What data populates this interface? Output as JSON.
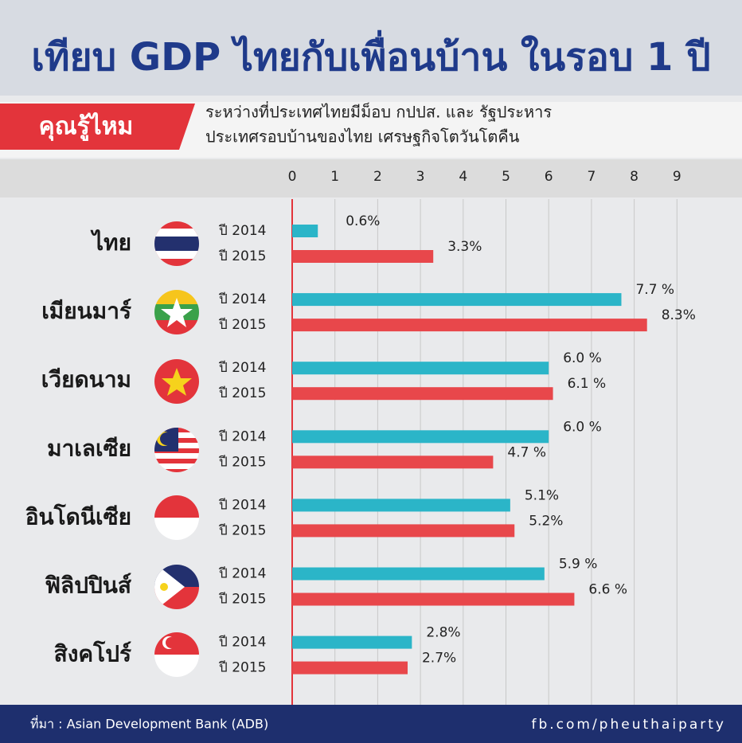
{
  "chart_data": {
    "type": "bar",
    "orientation": "horizontal",
    "title": "เทียบ GDP ไทยกับเพื่อนบ้าน ในรอบ 1 ปี",
    "badge": "คุณรู้ไหม",
    "subtitle": [
      "ระหว่างที่ประเทศไทยมีม็อบ กปปส. และ รัฐประหาร",
      "ประเทศรอบบ้านของไทย เศรษฐกิจโตวันโตคืน"
    ],
    "categories": [
      "ไทย",
      "เมียนมาร์",
      "เวียดนาม",
      "มาเลเซีย",
      "อินโดนีเซีย",
      "ฟิลิปปินส์",
      "สิงคโปร์"
    ],
    "series": [
      {
        "name": "ปี 2014",
        "color": "#2bb5c8",
        "values": [
          0.6,
          7.7,
          6.0,
          6.0,
          5.1,
          5.9,
          2.8
        ],
        "value_labels": [
          "0.6%",
          "7.7 %",
          "6.0 %",
          "6.0 %",
          "5.1%",
          "5.9 %",
          "2.8%"
        ]
      },
      {
        "name": "ปี 2015",
        "color": "#e8474b",
        "values": [
          3.3,
          8.3,
          6.1,
          4.7,
          5.2,
          6.6,
          2.7
        ],
        "value_labels": [
          "3.3%",
          "8.3%",
          "6.1 %",
          "4.7 %",
          "5.2%",
          "6.6 %",
          "2.7%"
        ]
      }
    ],
    "xlim": [
      0,
      10
    ],
    "xticks": [
      0,
      1,
      2,
      3,
      4,
      5,
      6,
      7,
      8,
      9
    ],
    "grid": true,
    "source": "ที่มา : Asian Development Bank (ADB)",
    "credit": "fb.com/pheuthaiparty"
  }
}
